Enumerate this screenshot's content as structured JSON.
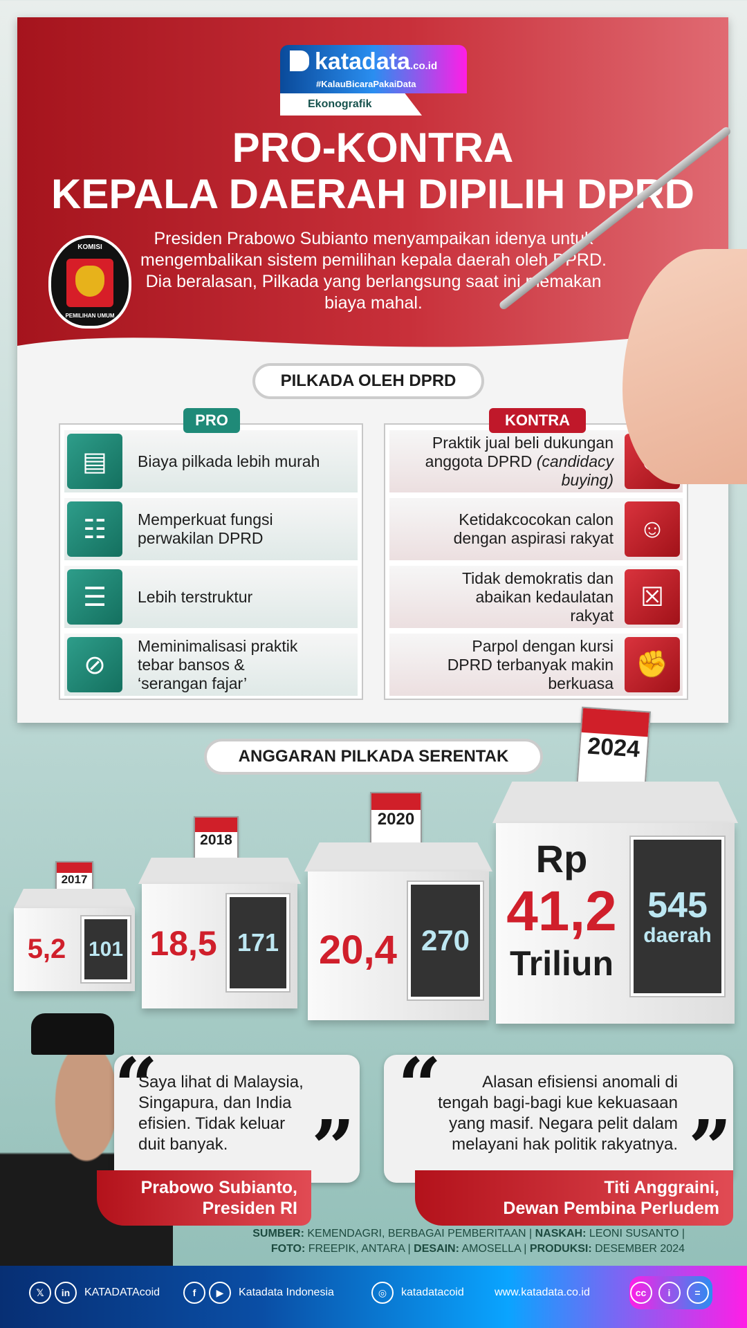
{
  "logo": {
    "brand": "katadata",
    "domain": ".co.id",
    "tagline": "#KalauBicaraPakaiData",
    "section": "Ekonografik"
  },
  "title": {
    "line1": "PRO-KONTRA",
    "line2": "KEPALA DAERAH DIPILIH DPRD"
  },
  "kpu_logo": {
    "top": "KOMISI",
    "bottom": "PEMILIHAN UMUM"
  },
  "intro": "Presiden Prabowo Subianto menyampaikan idenya untuk mengembalikan sistem pemilihan kepala daerah oleh DPRD. Dia beralasan, Pilkada yang berlangsung saat ini memakan biaya mahal.",
  "section1": "PILKADA OLEH DPRD",
  "pro": {
    "label": "PRO",
    "color": "#1f8a78",
    "items": [
      {
        "text": "Biaya pilkada lebih murah",
        "icon": "calculator-document-icon"
      },
      {
        "text": "Memperkuat fungsi perwakilan DPRD",
        "icon": "meeting-icon"
      },
      {
        "text": "Lebih terstruktur",
        "icon": "structure-icon"
      },
      {
        "text": "Meminimalisasi praktik tebar bansos & ‘serangan fajar’",
        "icon": "no-bansos-icon"
      }
    ]
  },
  "kontra": {
    "label": "KONTRA",
    "color": "#c0182a",
    "items": [
      {
        "text": "Praktik jual beli dukungan anggota DPRD",
        "text2": "(candidacy buying)",
        "icon": "no-handshake-icon"
      },
      {
        "text": "Ketidakcocokan calon dengan aspirasi rakyat",
        "icon": "candidate-mismatch-icon"
      },
      {
        "text": "Tidak demokratis dan abaikan kedaulatan rakyat",
        "icon": "ballot-reject-icon"
      },
      {
        "text": "Parpol dengan kursi DPRD terbanyak makin berkuasa",
        "icon": "power-fist-icon"
      }
    ]
  },
  "section2": "ANGGARAN PILKADA SERENTAK",
  "budget": [
    {
      "year": "2017",
      "amount": "5,2",
      "regions": "101"
    },
    {
      "year": "2018",
      "amount": "18,5",
      "regions": "171"
    },
    {
      "year": "2020",
      "amount": "20,4",
      "regions": "270"
    },
    {
      "year": "2024",
      "currency": "Rp",
      "amount": "41,2",
      "unit": "Triliun",
      "regions": "545",
      "regions_unit": "daerah"
    }
  ],
  "quotes": [
    {
      "text": "Saya lihat di Malaysia, Singapura, dan India efisien. Tidak keluar duit banyak.",
      "name": "Prabowo Subianto,",
      "role": "Presiden RI"
    },
    {
      "text": "Alasan efisiensi anomali di tengah bagi-bagi kue kekuasaan yang masif. Negara pelit dalam melayani hak politik rakyatnya.",
      "name": "Titi Anggraini,",
      "role": "Dewan Pembina Perludem"
    }
  ],
  "credits": {
    "line1_label1": "SUMBER:",
    "line1_val1": "KEMENDAGRI, BERBAGAI PEMBERITAAN |",
    "line1_label2": "NASKAH:",
    "line1_val2": "LEONI SUSANTO |",
    "line2_label1": "FOTO:",
    "line2_val1": "FREEPIK, ANTARA |",
    "line2_label2": "DESAIN:",
    "line2_val2": "AMOSELLA |",
    "line2_label3": "PRODUKSI:",
    "line2_val3": "DESEMBER 2024"
  },
  "footer": {
    "twitter_linkedin": "KATADATAcoid",
    "facebook_youtube": "Katadata Indonesia",
    "instagram": "katadatacoid",
    "website": "www.katadata.co.id"
  }
}
